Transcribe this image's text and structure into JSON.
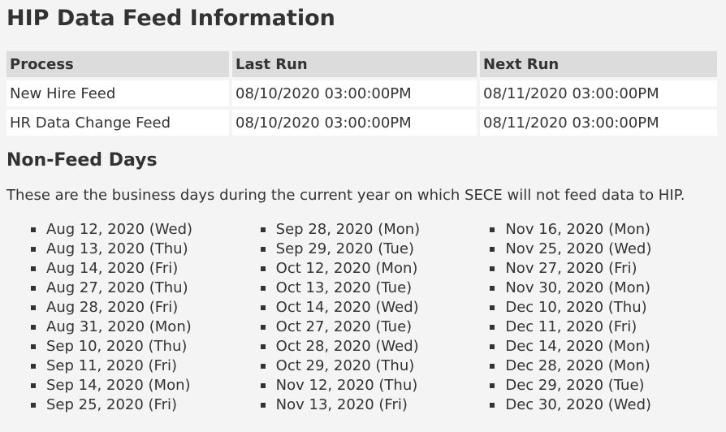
{
  "page": {
    "title": "HIP Data Feed Information"
  },
  "feed_table": {
    "headers": [
      "Process",
      "Last Run",
      "Next Run"
    ],
    "rows": [
      [
        "New Hire Feed",
        "08/10/2020 03:00:00PM",
        "08/11/2020 03:00:00PM"
      ],
      [
        "HR Data Change Feed",
        "08/10/2020 03:00:00PM",
        "08/11/2020 03:00:00PM"
      ]
    ]
  },
  "non_feed": {
    "heading": "Non-Feed Days",
    "description": "These are the business days during the current year on which SECE will not feed data to HIP.",
    "columns": [
      [
        "Aug 12, 2020 (Wed)",
        "Aug 13, 2020 (Thu)",
        "Aug 14, 2020 (Fri)",
        "Aug 27, 2020 (Thu)",
        "Aug 28, 2020 (Fri)",
        "Aug 31, 2020 (Mon)",
        "Sep 10, 2020 (Thu)",
        "Sep 11, 2020 (Fri)",
        "Sep 14, 2020 (Mon)",
        "Sep 25, 2020 (Fri)"
      ],
      [
        "Sep 28, 2020 (Mon)",
        "Sep 29, 2020 (Tue)",
        "Oct 12, 2020 (Mon)",
        "Oct 13, 2020 (Tue)",
        "Oct 14, 2020 (Wed)",
        "Oct 27, 2020 (Tue)",
        "Oct 28, 2020 (Wed)",
        "Oct 29, 2020 (Thu)",
        "Nov 12, 2020 (Thu)",
        "Nov 13, 2020 (Fri)"
      ],
      [
        "Nov 16, 2020 (Mon)",
        "Nov 25, 2020 (Wed)",
        "Nov 27, 2020 (Fri)",
        "Nov 30, 2020 (Mon)",
        "Dec 10, 2020 (Thu)",
        "Dec 11, 2020 (Fri)",
        "Dec 14, 2020 (Mon)",
        "Dec 28, 2020 (Mon)",
        "Dec 29, 2020 (Tue)",
        "Dec 30, 2020 (Wed)"
      ]
    ]
  }
}
